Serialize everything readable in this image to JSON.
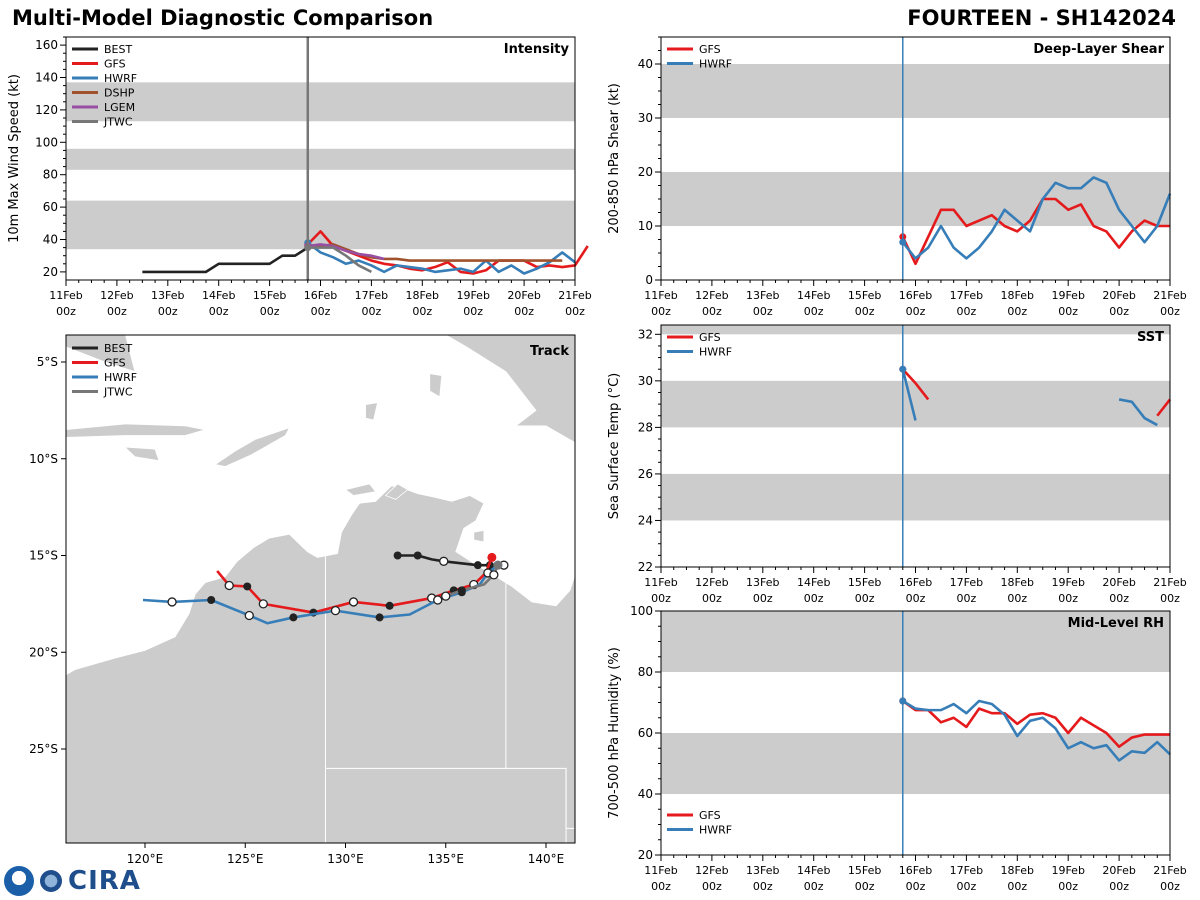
{
  "header": {
    "left_title": "Multi-Model Diagnostic Comparison",
    "right_title": "FOURTEEN - SH142024"
  },
  "logo": {
    "text": "CIRA"
  },
  "colors": {
    "BEST": "#222222",
    "GFS": "#e41a1c",
    "HWRF": "#377eb8",
    "DSHP": "#a0522d",
    "LGEM": "#984ea3",
    "JTWC": "#777777",
    "band": "#cccccc"
  },
  "chart_data": [
    {
      "type": "line",
      "title": "Intensity",
      "ylabel": "10m Max Wind Speed (kt)",
      "ylim": [
        15,
        165
      ],
      "yticks": [
        20,
        40,
        60,
        80,
        100,
        120,
        140,
        160
      ],
      "xlim_days": [
        0,
        10
      ],
      "x_ticks": [
        "11Feb",
        "12Feb",
        "13Feb",
        "14Feb",
        "15Feb",
        "16Feb",
        "17Feb",
        "18Feb",
        "19Feb",
        "20Feb",
        "21Feb"
      ],
      "x_tick_hour": "00z",
      "current_time_day": 4.75,
      "current_line_color": "#777777",
      "bands": [
        [
          34,
          64
        ],
        [
          83,
          96
        ],
        [
          113,
          137
        ]
      ],
      "legend": [
        "BEST",
        "GFS",
        "HWRF",
        "DSHP",
        "LGEM",
        "JTWC"
      ],
      "series": [
        {
          "name": "BEST",
          "t_start": 1.5,
          "values": [
            20,
            20,
            20,
            20,
            20,
            20,
            25,
            25,
            25,
            25,
            25,
            30,
            30,
            35
          ]
        },
        {
          "name": "GFS",
          "t_start": 4.75,
          "values": [
            37,
            45,
            36,
            33,
            30,
            27,
            25,
            24,
            22,
            21,
            23,
            26,
            20,
            19,
            21,
            27,
            27,
            27,
            23,
            24,
            23,
            24,
            36
          ]
        },
        {
          "name": "HWRF",
          "t_start": 4.75,
          "values": [
            38,
            32,
            29,
            25,
            27,
            24,
            20,
            24,
            23,
            22,
            20,
            21,
            22,
            20,
            27,
            20,
            24,
            19,
            22,
            26,
            32,
            26
          ]
        },
        {
          "name": "DSHP",
          "t_start": 4.75,
          "values": [
            36,
            36,
            37,
            34,
            31,
            29,
            28,
            28,
            27,
            27,
            27,
            27,
            27,
            27,
            27,
            27,
            27,
            27,
            27,
            27,
            27
          ]
        },
        {
          "name": "LGEM",
          "t_start": 4.75,
          "values": [
            36,
            37,
            36,
            33,
            31,
            30,
            28
          ]
        },
        {
          "name": "JTWC",
          "t_start": 4.75,
          "values": [
            35,
            35,
            35,
            30,
            24,
            20
          ]
        }
      ]
    },
    {
      "type": "line",
      "title": "Deep-Layer Shear",
      "ylabel": "200-850 hPa Shear (kt)",
      "ylim": [
        0,
        45
      ],
      "yticks": [
        0,
        10,
        20,
        30,
        40
      ],
      "xlim_days": [
        0,
        10
      ],
      "x_ticks": [
        "11Feb",
        "12Feb",
        "13Feb",
        "14Feb",
        "15Feb",
        "16Feb",
        "17Feb",
        "18Feb",
        "19Feb",
        "20Feb",
        "21Feb"
      ],
      "x_tick_hour": "00z",
      "current_time_day": 4.75,
      "current_line_color": "#377eb8",
      "bands": [
        [
          10,
          20
        ],
        [
          30,
          40
        ]
      ],
      "legend": [
        "GFS",
        "HWRF"
      ],
      "series": [
        {
          "name": "GFS",
          "t_start": 4.75,
          "values": [
            8,
            3,
            8,
            13,
            13,
            10,
            11,
            12,
            10,
            9,
            11,
            15,
            15,
            13,
            14,
            10,
            9,
            6,
            9,
            11,
            10,
            10
          ]
        },
        {
          "name": "HWRF",
          "t_start": 4.75,
          "values": [
            7,
            4,
            6,
            10,
            6,
            4,
            6,
            9,
            13,
            11,
            9,
            15,
            18,
            17,
            17,
            19,
            18,
            13,
            10,
            7,
            10,
            16
          ]
        }
      ]
    },
    {
      "type": "line",
      "title": "SST",
      "ylabel": "Sea Surface Temp (°C)",
      "ylim": [
        22,
        32.4
      ],
      "yticks": [
        22,
        24,
        26,
        28,
        30,
        32
      ],
      "xlim_days": [
        0,
        10
      ],
      "x_ticks": [
        "11Feb",
        "12Feb",
        "13Feb",
        "14Feb",
        "15Feb",
        "16Feb",
        "17Feb",
        "18Feb",
        "19Feb",
        "20Feb",
        "21Feb"
      ],
      "x_tick_hour": "00z",
      "current_time_day": 4.75,
      "current_line_color": "#377eb8",
      "bands": [
        [
          24,
          26
        ],
        [
          28,
          30
        ],
        [
          32,
          34
        ]
      ],
      "legend": [
        "GFS",
        "HWRF"
      ],
      "series": [
        {
          "name": "GFS",
          "t_start": 4.75,
          "values": [
            30.5,
            29.9,
            29.2,
            null,
            null,
            null,
            null,
            null,
            null,
            null,
            null,
            null,
            null,
            null,
            null,
            null,
            null,
            null,
            null,
            null,
            28.5,
            29.2
          ]
        },
        {
          "name": "HWRF",
          "t_start": 4.75,
          "values": [
            30.5,
            28.3,
            null,
            null,
            null,
            null,
            null,
            null,
            null,
            null,
            null,
            null,
            null,
            null,
            null,
            null,
            null,
            29.2,
            29.1,
            28.4,
            28.1
          ]
        }
      ]
    },
    {
      "type": "line",
      "title": "Mid-Level RH",
      "ylabel": "700-500 hPa Humidity (%)",
      "ylim": [
        20,
        100
      ],
      "yticks": [
        20,
        40,
        60,
        80,
        100
      ],
      "xlim_days": [
        0,
        10
      ],
      "x_ticks": [
        "11Feb",
        "12Feb",
        "13Feb",
        "14Feb",
        "15Feb",
        "16Feb",
        "17Feb",
        "18Feb",
        "19Feb",
        "20Feb",
        "21Feb"
      ],
      "x_tick_hour": "00z",
      "current_time_day": 4.75,
      "current_line_color": "#377eb8",
      "bands": [
        [
          40,
          60
        ],
        [
          80,
          100
        ]
      ],
      "legend": [
        "GFS",
        "HWRF"
      ],
      "legend_position": "bottom-left",
      "series": [
        {
          "name": "GFS",
          "t_start": 4.75,
          "values": [
            70.5,
            67.5,
            67.5,
            63.5,
            65,
            62,
            68,
            66.5,
            66.5,
            63,
            66,
            66.5,
            65,
            60,
            65,
            62.5,
            60,
            55.5,
            58.5,
            59.5,
            59.5,
            59.5
          ]
        },
        {
          "name": "HWRF",
          "t_start": 4.75,
          "values": [
            70.5,
            68,
            67.5,
            67.5,
            69.5,
            66.5,
            70.5,
            69.5,
            66,
            59,
            64,
            65,
            61.5,
            55,
            57,
            55,
            56,
            51,
            54,
            53.5,
            57,
            53
          ]
        }
      ]
    },
    {
      "type": "scatter",
      "title": "Track",
      "lon_ticks": [
        120,
        125,
        130,
        135,
        140
      ],
      "lon_labels": [
        "120°E",
        "125°E",
        "130°E",
        "135°E",
        "140°E"
      ],
      "lat_ticks": [
        -5,
        -10,
        -15,
        -20,
        -25
      ],
      "lat_labels": [
        "5°S",
        "10°S",
        "15°S",
        "20°S",
        "25°S"
      ],
      "legend": [
        "BEST",
        "GFS",
        "HWRF",
        "JTWC"
      ],
      "tracks": [
        {
          "name": "BEST",
          "points": [
            [
              132.6,
              -15.0,
              1
            ],
            [
              133.6,
              -15.0,
              1
            ],
            [
              134.3,
              -15.2,
              -1
            ],
            [
              134.9,
              -15.3,
              0
            ],
            [
              136.6,
              -15.5,
              1
            ],
            [
              137.2,
              -15.5,
              1
            ],
            [
              137.9,
              -15.5,
              0
            ]
          ]
        },
        {
          "name": "GFS",
          "points": [
            [
              137.3,
              -15.1,
              2
            ],
            [
              137.0,
              -15.9,
              -1
            ],
            [
              136.4,
              -16.5,
              0
            ],
            [
              135.4,
              -16.8,
              1
            ],
            [
              134.3,
              -17.2,
              0
            ],
            [
              132.2,
              -17.6,
              1
            ],
            [
              130.4,
              -17.4,
              0
            ],
            [
              128.4,
              -17.95,
              1
            ],
            [
              125.9,
              -17.5,
              0
            ],
            [
              125.1,
              -16.6,
              1
            ],
            [
              124.2,
              -16.55,
              0
            ],
            [
              123.6,
              -15.8,
              -1
            ]
          ]
        },
        {
          "name": "HWRF",
          "points": [
            [
              137.6,
              -15.5,
              2
            ],
            [
              137.1,
              -15.9,
              0
            ],
            [
              136.7,
              -16.5,
              -1
            ],
            [
              135.8,
              -16.9,
              1
            ],
            [
              134.6,
              -17.3,
              0
            ],
            [
              133.2,
              -18.05,
              -1
            ],
            [
              131.7,
              -18.2,
              1
            ],
            [
              129.5,
              -17.85,
              0
            ],
            [
              127.4,
              -18.2,
              1
            ],
            [
              126.1,
              -18.5,
              -1
            ],
            [
              125.2,
              -18.1,
              0
            ],
            [
              123.3,
              -17.3,
              1
            ],
            [
              121.35,
              -17.4,
              0
            ],
            [
              119.9,
              -17.3,
              -1
            ]
          ]
        },
        {
          "name": "JTWC",
          "points": [
            [
              137.6,
              -15.5,
              2
            ],
            [
              137.4,
              -16.0,
              0
            ],
            [
              136.9,
              -16.5,
              -1
            ],
            [
              135.8,
              -16.8,
              1
            ],
            [
              135.0,
              -17.1,
              0
            ]
          ]
        }
      ]
    }
  ]
}
